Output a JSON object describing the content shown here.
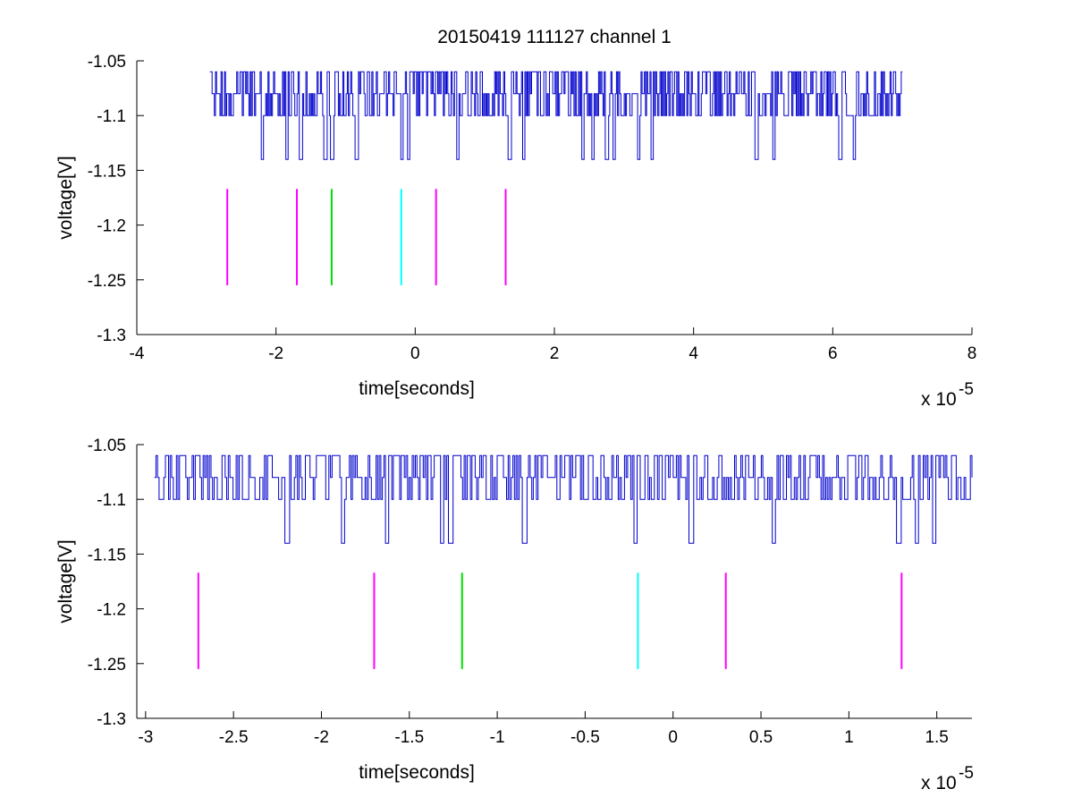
{
  "figure": {
    "title": "20150419 111127 channel 1",
    "background": "#ffffff",
    "trace_color": "#0000cc",
    "line_colors": {
      "magenta": "#ff00ff",
      "green": "#00dd00",
      "cyan": "#00ffff"
    }
  },
  "chart_data": [
    {
      "type": "line",
      "title": "20150419 111127 channel 1",
      "xlabel": "time[seconds]",
      "ylabel": "voltage[V]",
      "x_exponent_label": "x 10",
      "x_exponent": "-5",
      "xlim": [
        -4,
        8
      ],
      "ylim": [
        -1.3,
        -1.05
      ],
      "xticks": [
        -4,
        -2,
        0,
        2,
        4,
        6,
        8
      ],
      "xtick_labels": [
        "-4",
        "-2",
        "0",
        "2",
        "4",
        "6",
        "8"
      ],
      "yticks": [
        -1.3,
        -1.25,
        -1.2,
        -1.15,
        -1.1,
        -1.05
      ],
      "ytick_labels": [
        "-1.3",
        "-1.25",
        "-1.2",
        "-1.15",
        "-1.1",
        "-1.05"
      ],
      "grid": false,
      "trace": {
        "x_range": [
          -2.95,
          7.0
        ],
        "levels": [
          -1.06,
          -1.08,
          -1.1,
          -1.14
        ],
        "baseline": -1.1
      },
      "markers": [
        {
          "x": -2.7,
          "y_range": [
            -1.255,
            -1.167
          ],
          "color": "magenta"
        },
        {
          "x": -1.7,
          "y_range": [
            -1.255,
            -1.167
          ],
          "color": "magenta"
        },
        {
          "x": -1.2,
          "y_range": [
            -1.255,
            -1.167
          ],
          "color": "green"
        },
        {
          "x": -0.2,
          "y_range": [
            -1.255,
            -1.167
          ],
          "color": "cyan"
        },
        {
          "x": 0.3,
          "y_range": [
            -1.255,
            -1.167
          ],
          "color": "magenta"
        },
        {
          "x": 1.3,
          "y_range": [
            -1.255,
            -1.167
          ],
          "color": "magenta"
        }
      ],
      "dips": [
        -2.2,
        -1.85,
        -1.65,
        -1.3,
        -1.2,
        -0.85,
        -0.2,
        -0.1,
        0.6,
        1.35,
        1.55,
        2.4,
        2.55,
        2.75,
        2.85,
        3.2,
        3.4,
        4.9,
        5.15,
        6.1,
        6.3
      ]
    },
    {
      "type": "line",
      "title": "",
      "xlabel": "time[seconds]",
      "ylabel": "voltage[V]",
      "x_exponent_label": "x 10",
      "x_exponent": "-5",
      "xlim": [
        -3.05,
        1.7
      ],
      "ylim": [
        -1.3,
        -1.05
      ],
      "xticks": [
        -3,
        -2.5,
        -2,
        -1.5,
        -1,
        -0.5,
        0,
        0.5,
        1,
        1.5
      ],
      "xtick_labels": [
        "-3",
        "-2.5",
        "-2",
        "-1.5",
        "-1",
        "-0.5",
        "0",
        "0.5",
        "1",
        "1.5"
      ],
      "yticks": [
        -1.3,
        -1.25,
        -1.2,
        -1.15,
        -1.1,
        -1.05
      ],
      "ytick_labels": [
        "-1.3",
        "-1.25",
        "-1.2",
        "-1.15",
        "-1.1",
        "-1.05"
      ],
      "grid": false,
      "trace": {
        "x_range": [
          -2.95,
          1.7
        ],
        "levels": [
          -1.06,
          -1.08,
          -1.1,
          -1.14
        ],
        "baseline": -1.1
      },
      "markers": [
        {
          "x": -2.7,
          "y_range": [
            -1.255,
            -1.167
          ],
          "color": "magenta"
        },
        {
          "x": -1.7,
          "y_range": [
            -1.255,
            -1.167
          ],
          "color": "magenta"
        },
        {
          "x": -1.2,
          "y_range": [
            -1.255,
            -1.167
          ],
          "color": "green"
        },
        {
          "x": -0.2,
          "y_range": [
            -1.255,
            -1.167
          ],
          "color": "cyan"
        },
        {
          "x": 0.3,
          "y_range": [
            -1.255,
            -1.167
          ],
          "color": "magenta"
        },
        {
          "x": 1.3,
          "y_range": [
            -1.255,
            -1.167
          ],
          "color": "magenta"
        }
      ],
      "dips": [
        -2.2,
        -1.88,
        -1.63,
        -1.32,
        -1.27,
        -0.85,
        -0.22,
        0.1,
        0.57,
        1.28,
        1.38,
        1.48
      ]
    }
  ]
}
